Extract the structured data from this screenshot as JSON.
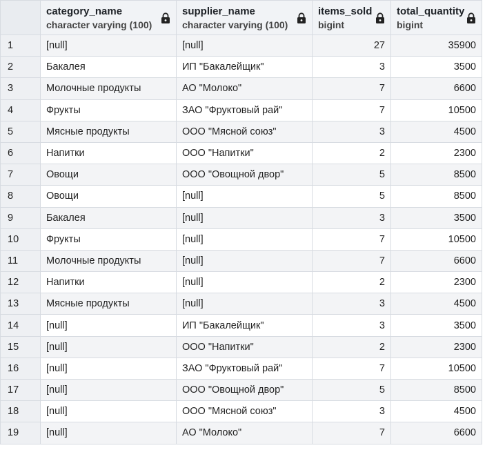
{
  "columns": [
    {
      "name": "category_name",
      "type": "character varying (100)"
    },
    {
      "name": "supplier_name",
      "type": "character varying (100)"
    },
    {
      "name": "items_sold",
      "type": "bigint"
    },
    {
      "name": "total_quantity",
      "type": "bigint"
    }
  ],
  "rows": [
    {
      "n": "1",
      "category": "[null]",
      "supplier": "[null]",
      "items_sold": "27",
      "total_quantity": "35900"
    },
    {
      "n": "2",
      "category": "Бакалея",
      "supplier": "ИП \"Бакалейщик\"",
      "items_sold": "3",
      "total_quantity": "3500"
    },
    {
      "n": "3",
      "category": "Молочные продукты",
      "supplier": "АО \"Молоко\"",
      "items_sold": "7",
      "total_quantity": "6600"
    },
    {
      "n": "4",
      "category": "Фрукты",
      "supplier": "ЗАО \"Фруктовый рай\"",
      "items_sold": "7",
      "total_quantity": "10500"
    },
    {
      "n": "5",
      "category": "Мясные продукты",
      "supplier": "ООО \"Мясной союз\"",
      "items_sold": "3",
      "total_quantity": "4500"
    },
    {
      "n": "6",
      "category": "Напитки",
      "supplier": "ООО \"Напитки\"",
      "items_sold": "2",
      "total_quantity": "2300"
    },
    {
      "n": "7",
      "category": "Овощи",
      "supplier": "ООО \"Овощной двор\"",
      "items_sold": "5",
      "total_quantity": "8500"
    },
    {
      "n": "8",
      "category": "Овощи",
      "supplier": "[null]",
      "items_sold": "5",
      "total_quantity": "8500"
    },
    {
      "n": "9",
      "category": "Бакалея",
      "supplier": "[null]",
      "items_sold": "3",
      "total_quantity": "3500"
    },
    {
      "n": "10",
      "category": "Фрукты",
      "supplier": "[null]",
      "items_sold": "7",
      "total_quantity": "10500"
    },
    {
      "n": "11",
      "category": "Молочные продукты",
      "supplier": "[null]",
      "items_sold": "7",
      "total_quantity": "6600"
    },
    {
      "n": "12",
      "category": "Напитки",
      "supplier": "[null]",
      "items_sold": "2",
      "total_quantity": "2300"
    },
    {
      "n": "13",
      "category": "Мясные продукты",
      "supplier": "[null]",
      "items_sold": "3",
      "total_quantity": "4500"
    },
    {
      "n": "14",
      "category": "[null]",
      "supplier": "ИП \"Бакалейщик\"",
      "items_sold": "3",
      "total_quantity": "3500"
    },
    {
      "n": "15",
      "category": "[null]",
      "supplier": "ООО \"Напитки\"",
      "items_sold": "2",
      "total_quantity": "2300"
    },
    {
      "n": "16",
      "category": "[null]",
      "supplier": "ЗАО \"Фруктовый рай\"",
      "items_sold": "7",
      "total_quantity": "10500"
    },
    {
      "n": "17",
      "category": "[null]",
      "supplier": "ООО \"Овощной двор\"",
      "items_sold": "5",
      "total_quantity": "8500"
    },
    {
      "n": "18",
      "category": "[null]",
      "supplier": "ООО \"Мясной союз\"",
      "items_sold": "3",
      "total_quantity": "4500"
    },
    {
      "n": "19",
      "category": "[null]",
      "supplier": "АО \"Молоко\"",
      "items_sold": "7",
      "total_quantity": "6600"
    }
  ],
  "icons": {
    "column_lock": "lock-icon"
  },
  "colors": {
    "header_bg": "#f1f3f6",
    "row_alt_bg": "#f3f4f6",
    "grid_line": "#d7dbe1"
  }
}
